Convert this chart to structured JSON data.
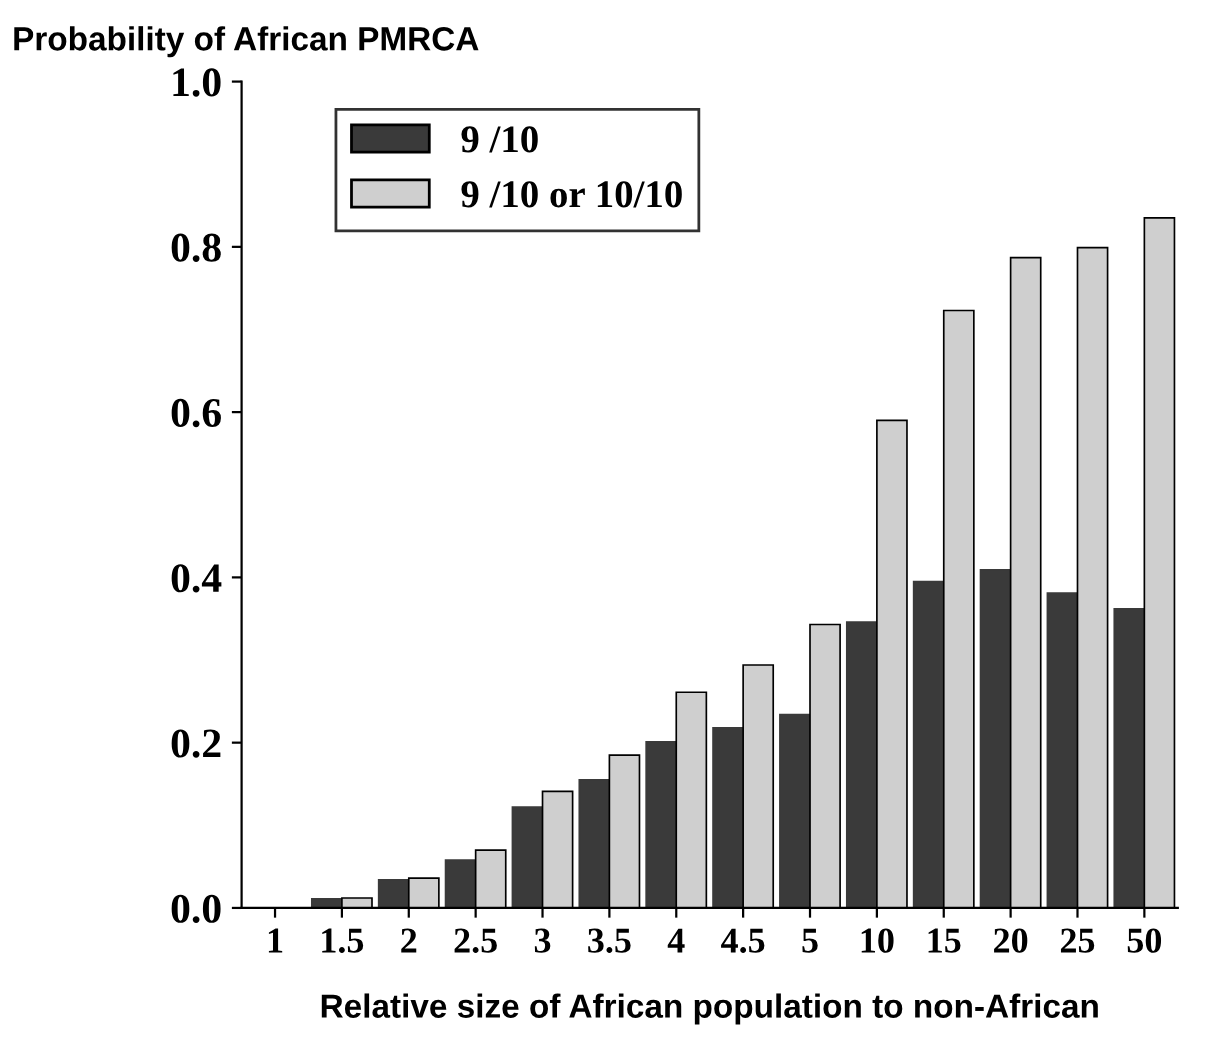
{
  "chart_data": {
    "type": "bar",
    "xlabel": "Relative size of African population to non-African",
    "ylabel": "Probability of African PMRCA",
    "categories": [
      "1",
      "1.5",
      "2",
      "2.5",
      "3",
      "3.5",
      "4",
      "4.5",
      "5",
      "10",
      "15",
      "20",
      "25",
      "50"
    ],
    "series": [
      {
        "name": "9 /10",
        "color": "#3a3a3a",
        "values": [
          0,
          0.011,
          0.034,
          0.058,
          0.122,
          0.155,
          0.201,
          0.218,
          0.234,
          0.346,
          0.395,
          0.409,
          0.381,
          0.362
        ]
      },
      {
        "name": "9 /10 or 10/10",
        "color": "#cfcfcf",
        "values": [
          0,
          0.012,
          0.036,
          0.07,
          0.141,
          0.185,
          0.261,
          0.294,
          0.343,
          0.59,
          0.723,
          0.787,
          0.799,
          0.835
        ]
      }
    ],
    "ylim": [
      0,
      1.0
    ],
    "yticks": [
      {
        "value": 0,
        "label": "0.0"
      },
      0.2,
      0.4,
      0.6,
      0.8,
      {
        "value": 1.0,
        "label": "1.0"
      }
    ],
    "grid": false,
    "legend": "top left"
  }
}
